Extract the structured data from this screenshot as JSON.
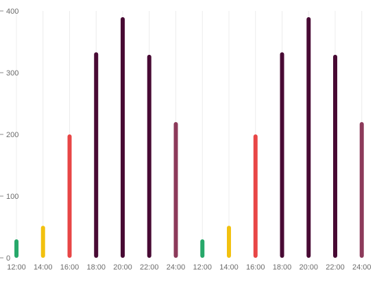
{
  "chart_data": {
    "type": "bar",
    "title": "",
    "xlabel": "",
    "ylabel": "",
    "ylim": [
      0,
      400
    ],
    "yticks": [
      "400",
      "300",
      "200",
      "100",
      "0"
    ],
    "grid": "vertical",
    "legend": "none",
    "categories": [
      "12:00",
      "14:00",
      "16:00",
      "18:00",
      "20:00",
      "22:00",
      "24:00",
      "12:00",
      "14:00",
      "16:00",
      "18:00",
      "20:00",
      "22:00",
      "24:00"
    ],
    "values": [
      30,
      52,
      200,
      333,
      390,
      329,
      220,
      30,
      52,
      200,
      333,
      390,
      329,
      220
    ],
    "colors": [
      "#27a86a",
      "#f2c10f",
      "#e84646",
      "#480a34",
      "#480a34",
      "#480a34",
      "#8c3a5a",
      "#27a86a",
      "#f2c10f",
      "#e84646",
      "#480a34",
      "#480a34",
      "#480a34",
      "#8c3a5a"
    ]
  }
}
